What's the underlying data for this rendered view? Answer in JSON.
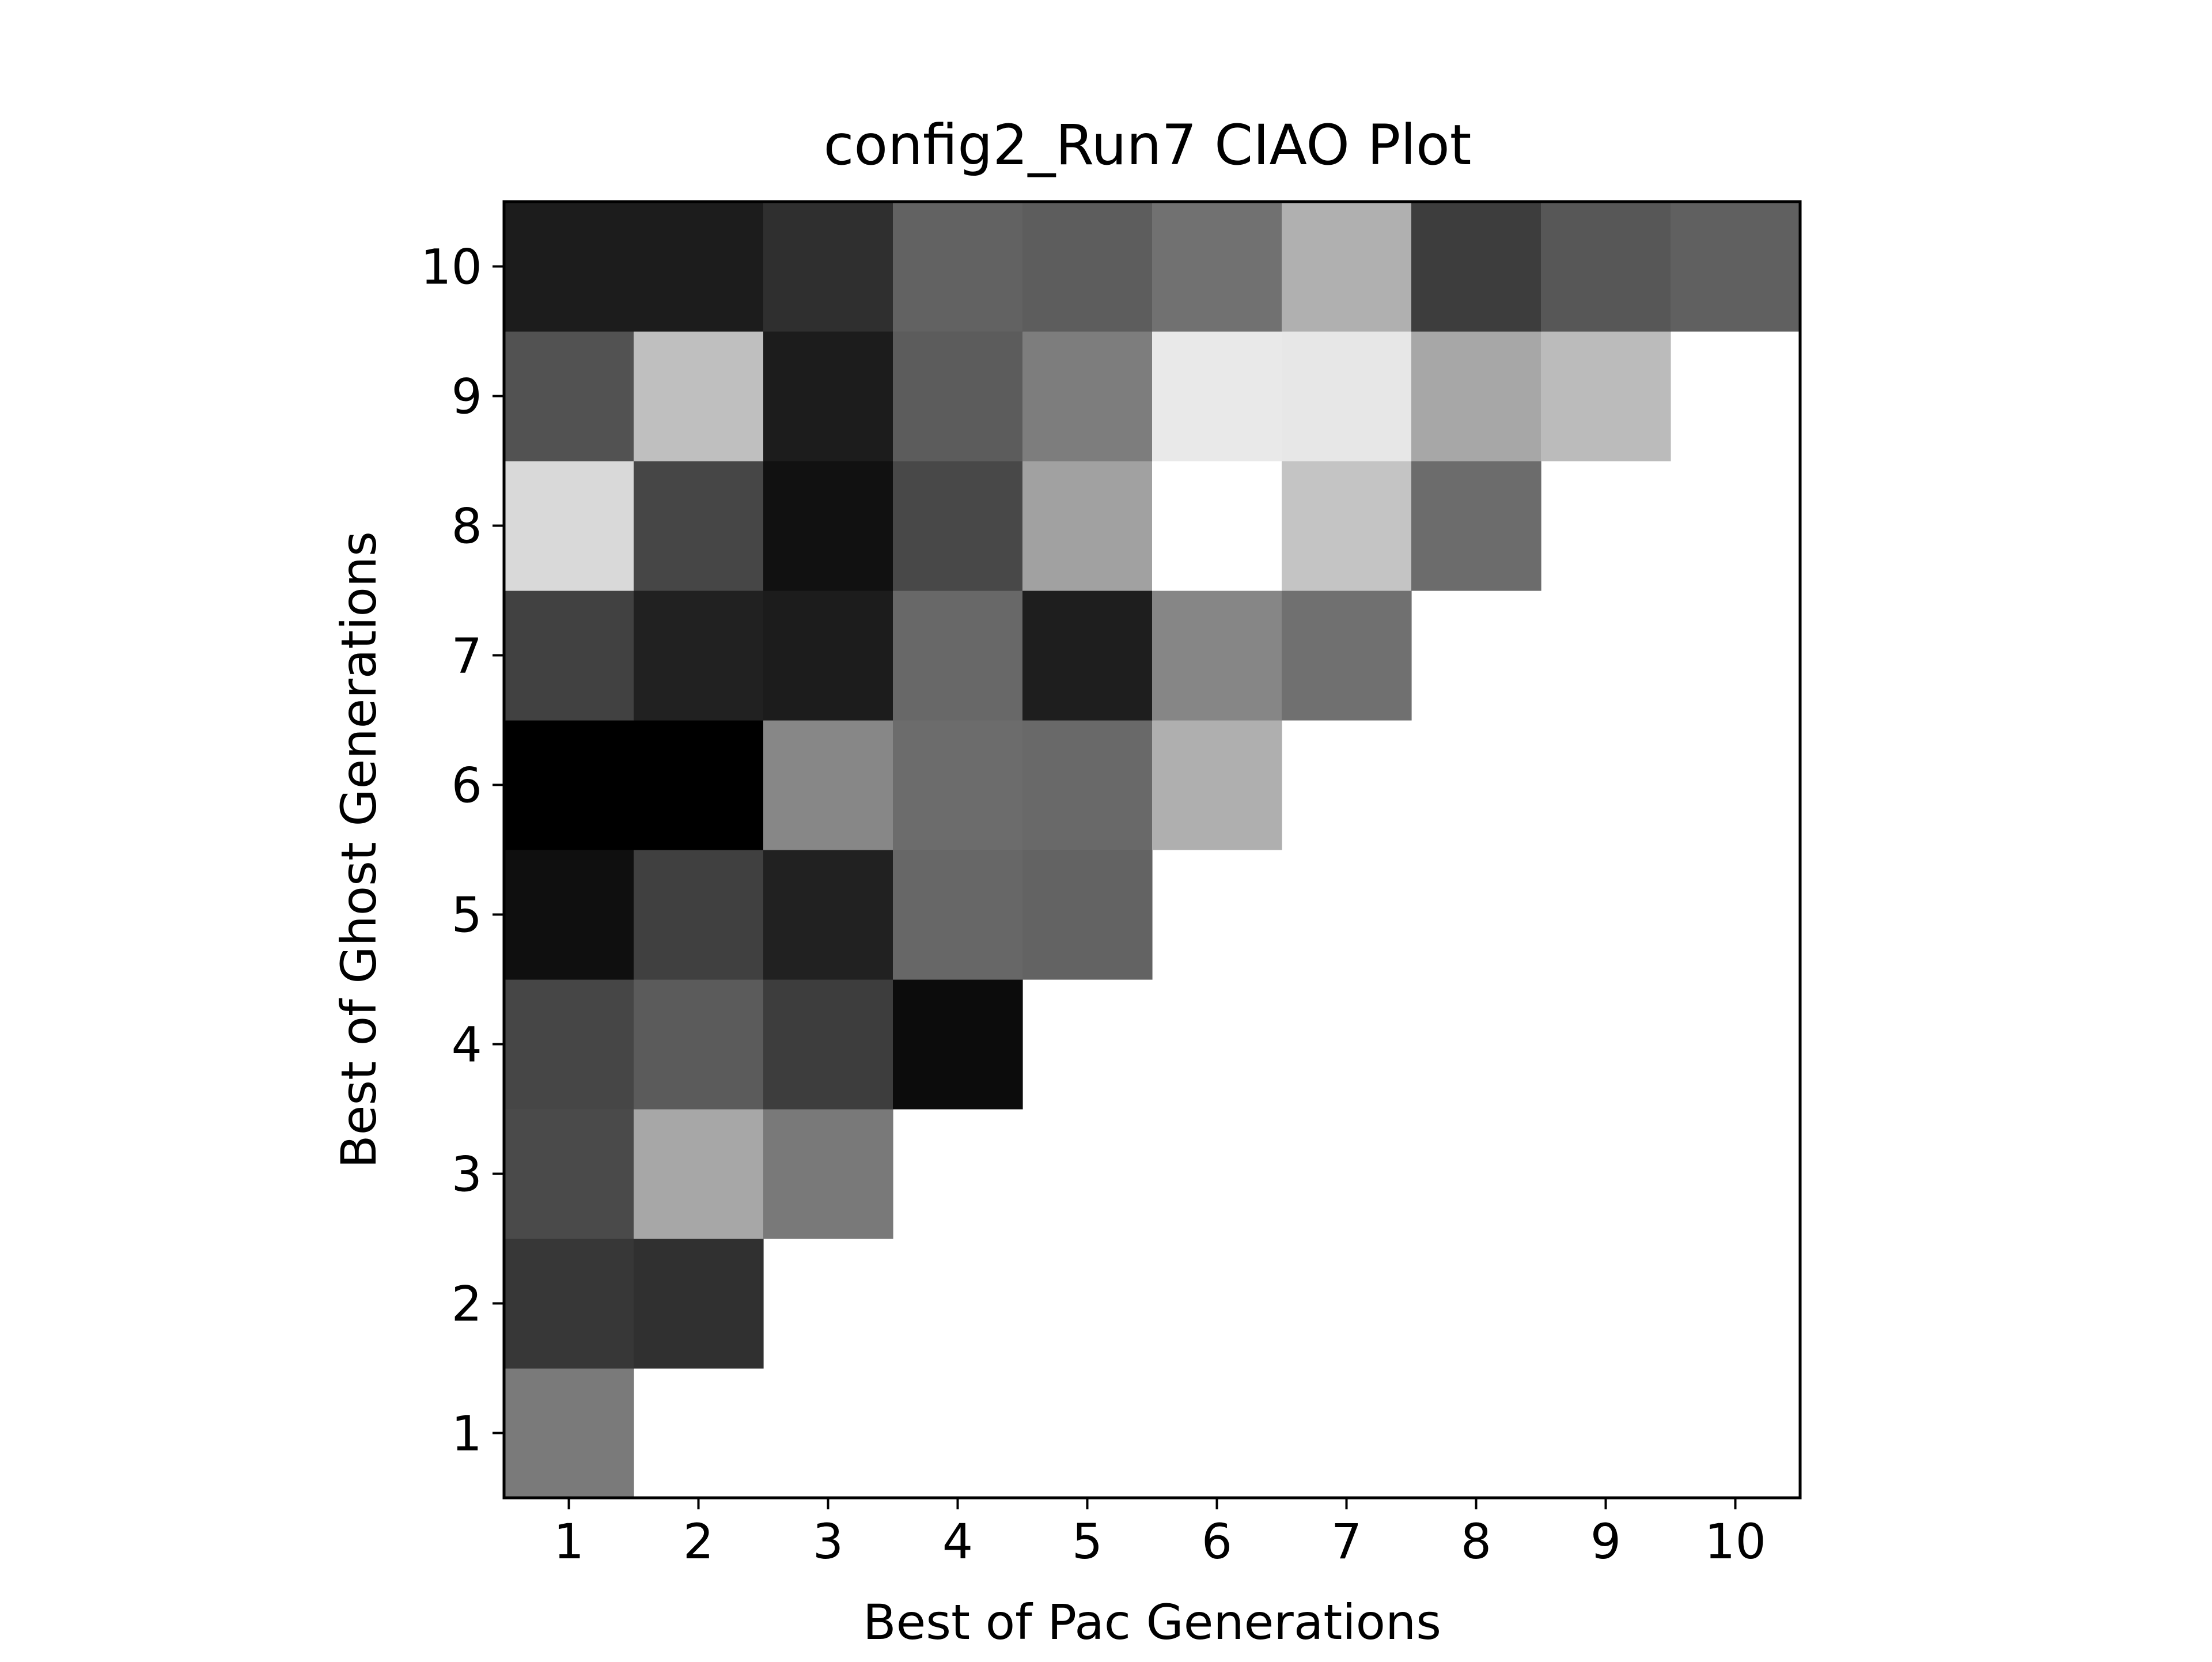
{
  "chart_data": {
    "type": "heatmap",
    "title": "config2_Run7 CIAO Plot",
    "xlabel": "Best of Pac Generations",
    "ylabel": "Best of Ghost Generations",
    "x_categories": [
      "1",
      "2",
      "3",
      "4",
      "5",
      "6",
      "7",
      "8",
      "9",
      "10"
    ],
    "y_categories": [
      "1",
      "2",
      "3",
      "4",
      "5",
      "6",
      "7",
      "8",
      "9",
      "10"
    ],
    "colormap": "gray",
    "value_range": [
      0,
      1
    ],
    "grid": false,
    "legend": "none",
    "mask": "cells with pac generation greater than ghost generation are empty",
    "values": [
      [
        0.478,
        null,
        null,
        null,
        null,
        null,
        null,
        null,
        null,
        null
      ],
      [
        0.216,
        0.188,
        null,
        null,
        null,
        null,
        null,
        null,
        null,
        null
      ],
      [
        0.29,
        0.655,
        0.475,
        null,
        null,
        null,
        null,
        null,
        null,
        null
      ],
      [
        0.275,
        0.357,
        0.239,
        0.047,
        null,
        null,
        null,
        null,
        null,
        null
      ],
      [
        0.059,
        0.251,
        0.129,
        0.404,
        0.388,
        null,
        null,
        null,
        null,
        null
      ],
      [
        0.0,
        0.0,
        0.529,
        0.424,
        0.412,
        0.686,
        null,
        null,
        null,
        null
      ],
      [
        0.255,
        0.129,
        0.11,
        0.408,
        0.118,
        0.525,
        0.439,
        null,
        null,
        null
      ],
      [
        0.851,
        0.275,
        0.067,
        0.282,
        0.631,
        1.0,
        0.769,
        0.424,
        null,
        null
      ],
      [
        0.322,
        0.749,
        0.11,
        0.361,
        0.49,
        0.914,
        0.906,
        0.655,
        0.733,
        null
      ],
      [
        0.11,
        0.11,
        0.184,
        0.384,
        0.365,
        0.443,
        0.69,
        0.239,
        0.341,
        0.376
      ]
    ]
  }
}
